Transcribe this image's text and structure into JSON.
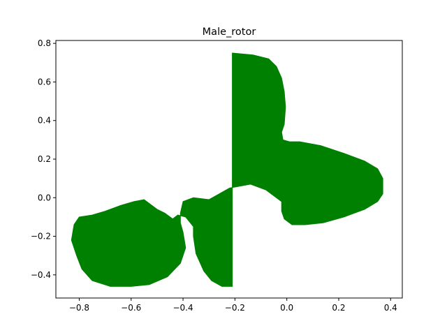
{
  "chart_data": {
    "type": "area",
    "title": "Male_rotor",
    "xlabel": "",
    "ylabel": "",
    "xlim": [
      -0.89,
      0.445
    ],
    "ylim": [
      -0.52,
      0.815
    ],
    "x_ticks": [
      -0.8,
      -0.6,
      -0.4,
      -0.2,
      0.0,
      0.2,
      0.4
    ],
    "x_tick_labels": [
      "−0.8",
      "−0.6",
      "−0.4",
      "−0.2",
      "0.0",
      "0.2",
      "0.4"
    ],
    "y_ticks": [
      -0.4,
      -0.2,
      0.0,
      0.2,
      0.4,
      0.6,
      0.8
    ],
    "y_tick_labels": [
      "−0.4",
      "−0.2",
      "0.0",
      "0.2",
      "0.4",
      "0.6",
      "0.8"
    ],
    "grid": false,
    "fill_color": "#008000",
    "series": [
      {
        "x": [
          -0.21,
          -0.13,
          -0.07,
          -0.04,
          -0.02,
          -0.01,
          -0.005,
          -0.01,
          -0.02,
          -0.015,
          0.01,
          0.05,
          0.13,
          0.22,
          0.3,
          0.35,
          0.37,
          0.37,
          0.35,
          0.3,
          0.22,
          0.14,
          0.07,
          0.02,
          -0.01,
          -0.02,
          -0.02,
          -0.04,
          -0.08,
          -0.14,
          -0.22,
          -0.3,
          -0.36,
          -0.4,
          -0.41,
          -0.41,
          -0.4,
          -0.39,
          -0.41,
          -0.46,
          -0.53,
          -0.6,
          -0.68,
          -0.75,
          -0.79,
          -0.81,
          -0.83,
          -0.82,
          -0.8,
          -0.75,
          -0.7,
          -0.64,
          -0.59,
          -0.55,
          -0.5,
          -0.47,
          -0.44,
          -0.42,
          -0.39,
          -0.36,
          -0.36,
          -0.35,
          -0.32,
          -0.29,
          -0.25,
          -0.21
        ],
        "y": [
          0.75,
          0.74,
          0.72,
          0.68,
          0.62,
          0.55,
          0.47,
          0.38,
          0.34,
          0.3,
          0.29,
          0.29,
          0.27,
          0.23,
          0.19,
          0.15,
          0.1,
          0.02,
          -0.02,
          -0.06,
          -0.1,
          -0.13,
          -0.14,
          -0.14,
          -0.11,
          -0.07,
          -0.02,
          0.0,
          0.04,
          0.07,
          0.05,
          -0.01,
          0.0,
          -0.02,
          -0.08,
          -0.13,
          -0.18,
          -0.26,
          -0.34,
          -0.41,
          -0.45,
          -0.46,
          -0.46,
          -0.43,
          -0.37,
          -0.3,
          -0.22,
          -0.14,
          -0.1,
          -0.09,
          -0.07,
          -0.04,
          -0.02,
          -0.01,
          -0.06,
          -0.08,
          -0.11,
          -0.09,
          -0.1,
          -0.15,
          -0.2,
          -0.29,
          -0.38,
          -0.43,
          -0.46,
          -0.46
        ]
      }
    ]
  }
}
